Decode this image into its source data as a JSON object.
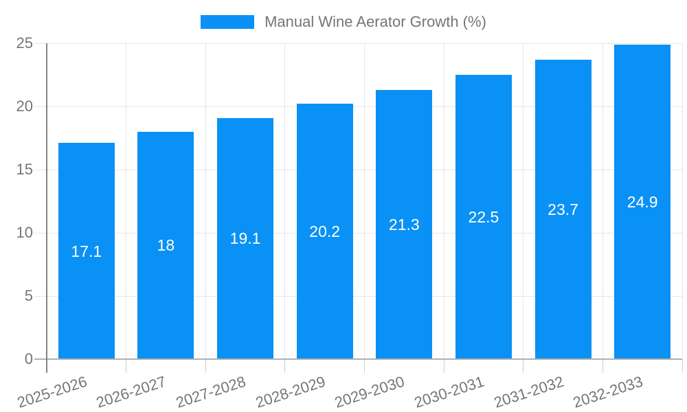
{
  "legend": {
    "label": "Manual Wine Aerator Growth (%)"
  },
  "chart_data": {
    "type": "bar",
    "title": "Manual Wine Aerator Growth (%)",
    "categories": [
      "2025-2026",
      "2026-2027",
      "2027-2028",
      "2028-2029",
      "2029-2030",
      "2030-2031",
      "2031-2032",
      "2032-2033"
    ],
    "values": [
      17.1,
      18,
      19.1,
      20.2,
      21.3,
      22.5,
      23.7,
      24.9
    ],
    "value_labels": [
      "17.1",
      "18",
      "19.1",
      "20.2",
      "21.3",
      "22.5",
      "23.7",
      "24.9"
    ],
    "xlabel": "",
    "ylabel": "",
    "ylim": [
      0,
      25
    ],
    "yticks": [
      0,
      5,
      10,
      15,
      20,
      25
    ],
    "grid": true,
    "legend_position": "top",
    "bar_label_position": "center",
    "colors": {
      "bar": "#0a91f5",
      "grid": "#e6e6e6",
      "axis": "#828282",
      "baseline": "#b0b0b0",
      "x_tick": "#cfcfcf",
      "tick_text": "#757575",
      "legend_text": "#757575",
      "bar_label": "#ffffff",
      "background": "#ffffff"
    }
  }
}
